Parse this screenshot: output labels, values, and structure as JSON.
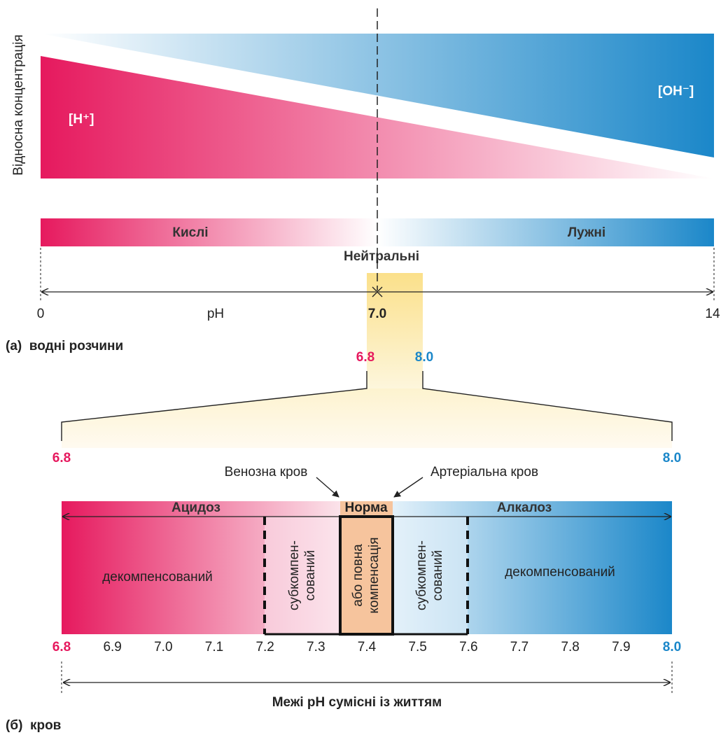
{
  "colors": {
    "acid": "#e6195e",
    "base": "#1b87c9",
    "highlight": "#fbe79a",
    "normal": "#f6c49d",
    "text": "#222222"
  },
  "panel_a": {
    "y_axis_label": "Відносна концентрація",
    "h_ion_label": "[H⁺]",
    "oh_ion_label": "[OH⁻]",
    "acidic_label": "Кислі",
    "alkaline_label": "Лужні",
    "neutral_label": "Нейтральні",
    "ph_min_label": "0",
    "ph_axis_label": "pH",
    "ph_neutral_label": "7.0",
    "ph_max_label": "14",
    "caption": "(а)  водні розчини",
    "zoom_low_label": "6.8",
    "zoom_high_label": "8.0"
  },
  "panel_b": {
    "range_low_label": "6.8",
    "range_high_label": "8.0",
    "venous_label": "Венозна кров",
    "arterial_label": "Артеріальна кров",
    "acidosis_label": "Ацидоз",
    "norm_label": "Норма",
    "alkalosis_label": "Алкалоз",
    "acid_decomp_label": "декомпенсований",
    "acid_subcomp_line1": "субкомпен-",
    "acid_subcomp_line2": "сований",
    "norm_line1": "або повна",
    "norm_line2": "компенсація",
    "alk_subcomp_line1": "субкомпен-",
    "alk_subcomp_line2": "сований",
    "alk_decomp_label": "декомпенсований",
    "ticks": [
      "6.8",
      "6.9",
      "7.0",
      "7.1",
      "7.2",
      "7.3",
      "7.4",
      "7.5",
      "7.6",
      "7.7",
      "7.8",
      "7.9",
      "8.0"
    ],
    "life_range_label": "Межі pH сумісні із життям",
    "caption": "(б)  кров"
  }
}
